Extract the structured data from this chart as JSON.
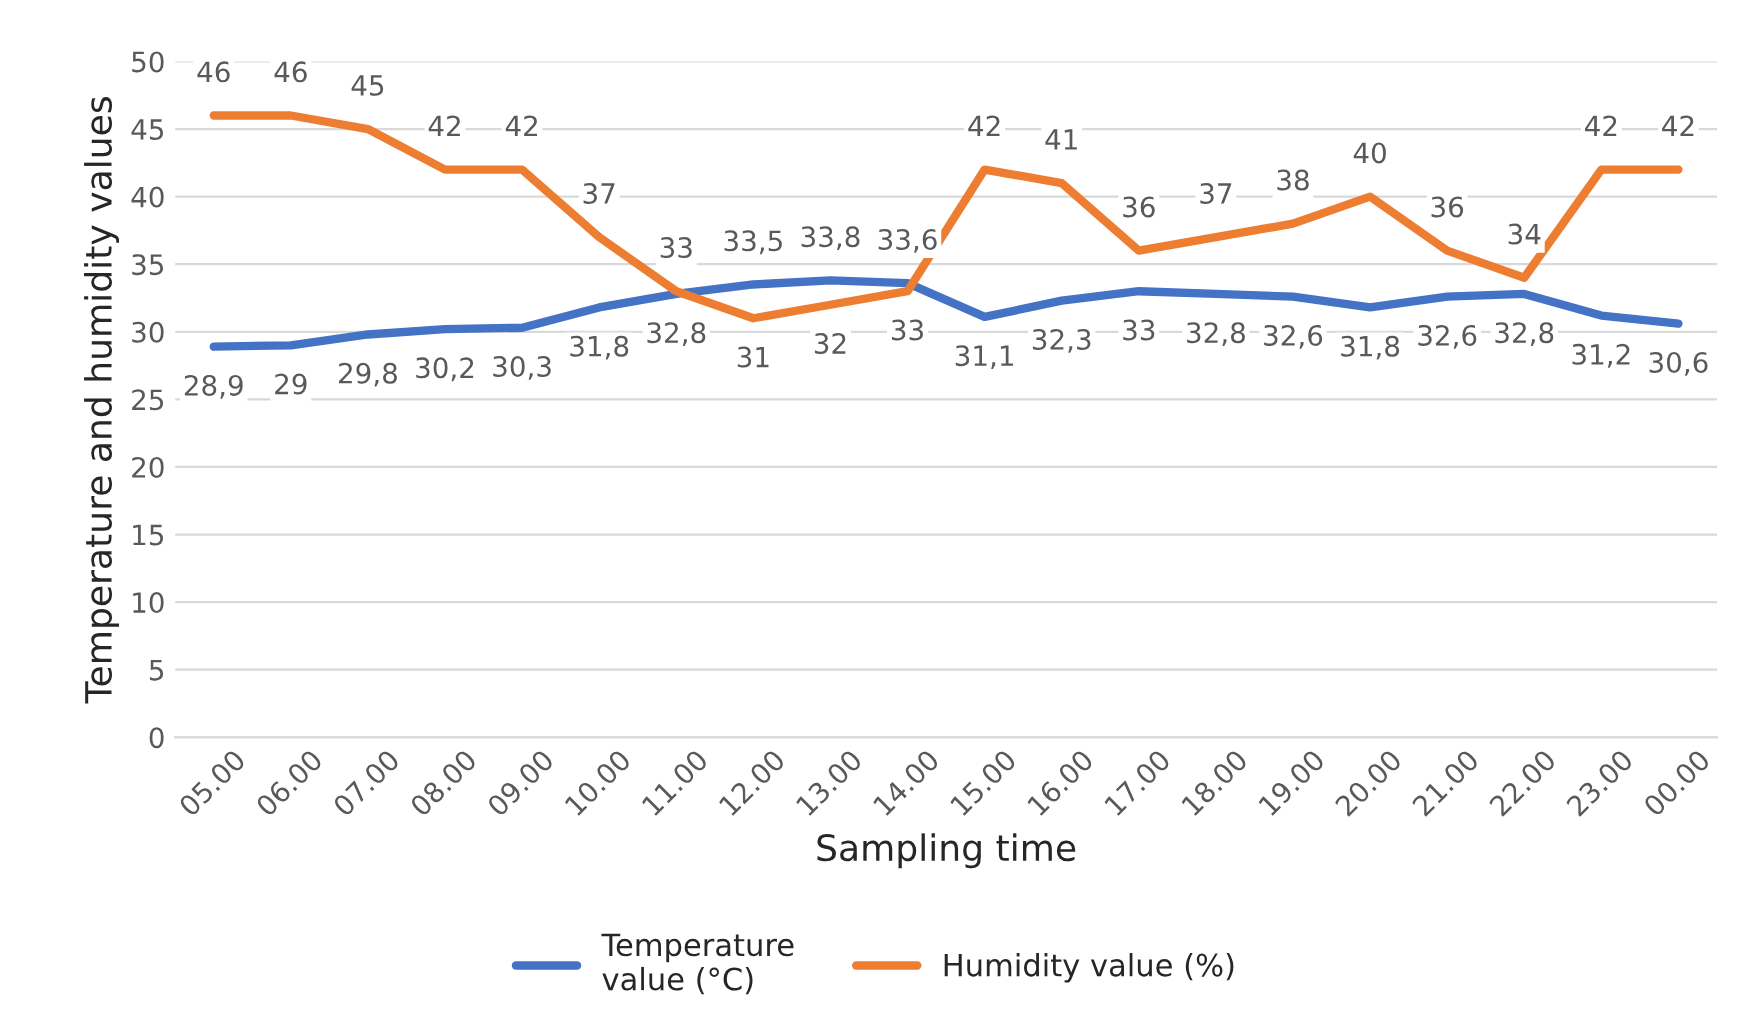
{
  "chart_data": {
    "type": "line",
    "xlabel": "Sampling time",
    "ylabel": "Temperature and humidity values",
    "categories": [
      "05.00",
      "06.00",
      "07.00",
      "08.00",
      "09.00",
      "10.00",
      "11.00",
      "12.00",
      "13.00",
      "14.00",
      "15.00",
      "16.00",
      "17.00",
      "18.00",
      "19.00",
      "20.00",
      "21.00",
      "22.00",
      "23.00",
      "00.00"
    ],
    "series": [
      {
        "name": "Temperature\nvalue (°C)",
        "color": "#4472c4",
        "values": [
          28.9,
          29,
          29.8,
          30.2,
          30.3,
          31.8,
          32.8,
          33.5,
          33.8,
          33.6,
          31.1,
          32.3,
          33,
          32.8,
          32.6,
          31.8,
          32.6,
          32.8,
          31.2,
          30.6
        ],
        "value_labels": [
          "28,9",
          "29",
          "29,8",
          "30,2",
          "30,3",
          "31,8",
          "32,8",
          "33,5",
          "33,8",
          "33,6",
          "31,1",
          "32,3",
          "33",
          "32,8",
          "32,6",
          "31,8",
          "32,6",
          "32,8",
          "31,2",
          "30,6"
        ]
      },
      {
        "name": "Humidity value (%)",
        "color": "#ed7d31",
        "values": [
          46,
          46,
          45,
          42,
          42,
          37,
          33,
          31,
          32,
          33,
          42,
          41,
          36,
          37,
          38,
          40,
          36,
          34,
          42,
          42
        ],
        "value_labels": [
          "46",
          "46",
          "45",
          "42",
          "42",
          "37",
          "33",
          "31",
          "32",
          "33",
          "42",
          "41",
          "36",
          "37",
          "38",
          "40",
          "36",
          "34",
          "42",
          "42"
        ]
      }
    ],
    "ylim": [
      0,
      50
    ],
    "yticks": [
      0,
      5,
      10,
      15,
      20,
      25,
      30,
      35,
      40,
      45,
      50
    ],
    "grid": "y",
    "legend": "bottom",
    "marker": "none",
    "line_style": "solid"
  }
}
